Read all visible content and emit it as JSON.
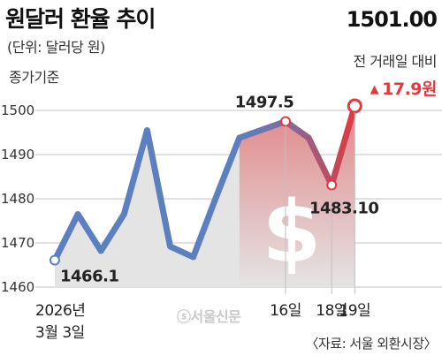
{
  "header": {
    "title": "원달러 환율 추이",
    "unit": "(단위: 달러당 원)",
    "basis": "종가기준"
  },
  "summary": {
    "latest_value": "1501.00",
    "prev_day_label": "전 거래일 대비",
    "change_arrow": "▲",
    "change_value": "17.9원",
    "change_color": "#e03a3e"
  },
  "footer": {
    "source": "〈자료: 서울 외환시장〉",
    "watermark": "ⓢ서울신문"
  },
  "colors": {
    "line_blue": "#5b7fbf",
    "line_red": "#e03a3e",
    "area_fill": "#e4e4e4",
    "grid": "#cfcfcf",
    "currency_symbol": "#ffffff"
  },
  "icons": {
    "currency": "dollar-sign-icon",
    "arrow": "up-arrow-icon"
  },
  "chart_data": {
    "type": "line",
    "title": "원달러 환율 추이",
    "xlabel": "",
    "ylabel": "",
    "ylim": [
      1460,
      1503
    ],
    "yticks": [
      1460,
      1470,
      1480,
      1490,
      1500
    ],
    "grid": true,
    "x_tick_labels": [
      {
        "index": 0,
        "text": "2026년"
      },
      {
        "index": 0,
        "text": "3월 3일"
      },
      {
        "index": 10,
        "text": "16일"
      },
      {
        "index": 12,
        "text": "18일"
      },
      {
        "index": 13,
        "text": "19일"
      }
    ],
    "values": [
      1466.1,
      1476.5,
      1468.2,
      1476.5,
      1495.5,
      1469.2,
      1466.8,
      1480.5,
      1493.8,
      1497.5,
      1493.8,
      1483.1,
      1501.0
    ],
    "point_indices": [
      0,
      1,
      2,
      3,
      4,
      5,
      6,
      7,
      8,
      10,
      11,
      12,
      13
    ],
    "highlight_from_index": 10,
    "marked_points": [
      {
        "point": 0,
        "label": "1466.1"
      },
      {
        "point": 9,
        "label": "1497.5"
      },
      {
        "point": 11,
        "label": "1483.10"
      },
      {
        "point": 12,
        "label": ""
      }
    ]
  }
}
